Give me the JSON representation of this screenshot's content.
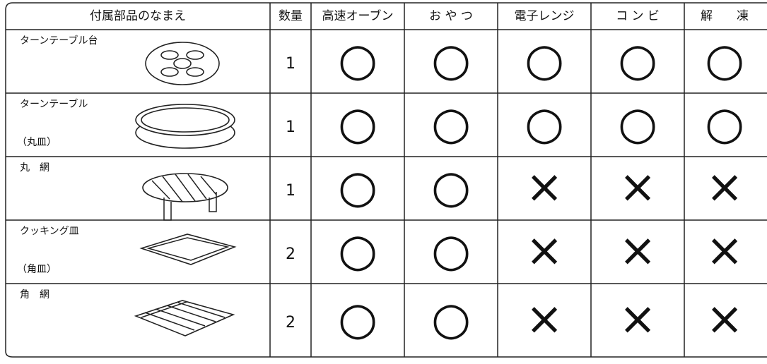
{
  "table": {
    "header": [
      "付属部品のなまえ",
      "数量",
      "高速オーブン",
      "お や つ",
      "電子レンジ",
      "コ ン ビ",
      "解　　凍"
    ],
    "rows": [
      {
        "name": "ターンテーブル台",
        "quantity": 1,
        "marks": [
          "○",
          "○",
          "○",
          "○",
          "○"
        ]
      },
      {
        "name": "ターンテーブル",
        "note": "（丸皿）",
        "quantity": 1,
        "marks": [
          "○",
          "○",
          "○",
          "○",
          "○"
        ]
      },
      {
        "name": "丸　網",
        "quantity": 1,
        "marks": [
          "○",
          "○",
          "×",
          "×",
          "×"
        ]
      },
      {
        "name": "クッキング皿",
        "note": "（角皿）",
        "quantity": 2,
        "marks": [
          "○",
          "○",
          "×",
          "×",
          "×"
        ]
      },
      {
        "name": "角　網",
        "quantity": 2,
        "marks": [
          "○",
          "○",
          "×",
          "×",
          "×"
        ]
      }
    ]
  }
}
